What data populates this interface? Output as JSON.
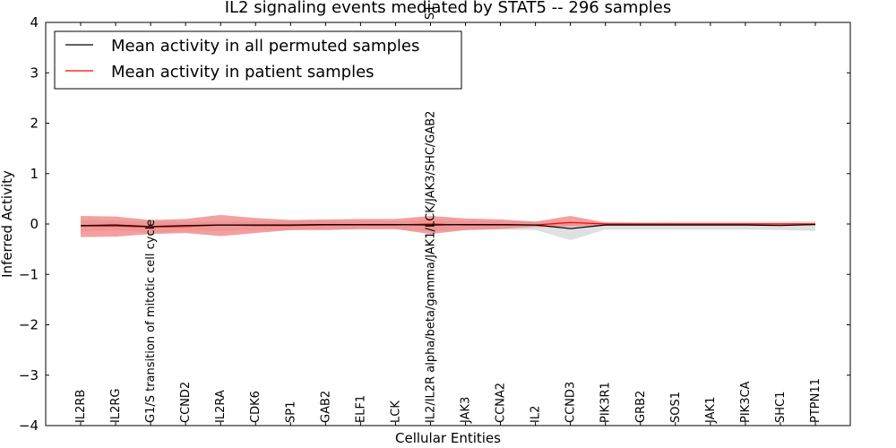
{
  "chart_data": {
    "type": "line",
    "title": "IL2 signaling events mediated by STAT5 -- 296 samples",
    "xlabel": "Cellular Entities",
    "ylabel": "Inferred Activity",
    "ylim": [
      -4,
      4
    ],
    "yticks": [
      4,
      3,
      2,
      1,
      0,
      -1,
      -2,
      -3,
      -4
    ],
    "ytick_labels": [
      "4",
      "3",
      "2",
      "1",
      "0",
      "−1",
      "−2",
      "−3",
      "−4"
    ],
    "categories": [
      "IL2RB",
      "IL2RG",
      "G1/S transition of mitotic cell cycle",
      "CCND2",
      "IL2RA",
      "CDK6",
      "SP1",
      "GAB2",
      "ELF1",
      "LCK",
      "IL2/IL2R alpha/beta/gamma/JAK1/LCK/JAK3/SHC/GAB2",
      "JAK3",
      "CCNA2",
      "IL2",
      "CCND3",
      "PIK3R1",
      "GRB2",
      "SOS1",
      "JAK1",
      "PIK3CA",
      "SHC1",
      "PTPN11"
    ],
    "top_annotation": "S1",
    "legend": {
      "position": "top-left",
      "entries": [
        {
          "label": "Mean activity in all permuted samples",
          "color": "#000000"
        },
        {
          "label": "Mean activity in patient samples",
          "color": "#ff0000"
        }
      ]
    },
    "series": [
      {
        "name": "Mean activity in all permuted samples",
        "color": "#000000",
        "values": [
          -0.03,
          -0.02,
          -0.05,
          -0.03,
          -0.02,
          -0.02,
          -0.02,
          -0.01,
          -0.01,
          -0.01,
          -0.02,
          -0.01,
          -0.01,
          -0.02,
          -0.09,
          -0.02,
          -0.02,
          -0.02,
          -0.02,
          -0.02,
          -0.03,
          -0.01
        ],
        "band_upper": [
          0.08,
          0.07,
          0.05,
          0.05,
          0.05,
          0.06,
          0.07,
          0.07,
          0.06,
          0.05,
          0.09,
          0.06,
          0.06,
          0.04,
          0.03,
          0.04,
          0.04,
          0.05,
          0.05,
          0.05,
          0.05,
          0.06
        ],
        "band_lower": [
          -0.15,
          -0.13,
          -0.17,
          -0.15,
          -0.14,
          -0.13,
          -0.12,
          -0.11,
          -0.11,
          -0.11,
          -0.15,
          -0.12,
          -0.11,
          -0.12,
          -0.32,
          -0.11,
          -0.11,
          -0.11,
          -0.11,
          -0.11,
          -0.12,
          -0.14
        ],
        "band_color": "#d3d3d3"
      },
      {
        "name": "Mean activity in patient samples",
        "color": "#ff0000",
        "values": [
          -0.04,
          -0.04,
          -0.06,
          -0.05,
          -0.02,
          -0.03,
          -0.03,
          -0.02,
          -0.02,
          -0.02,
          0.0,
          -0.02,
          -0.02,
          -0.02,
          0.03,
          0.0,
          0.0,
          0.0,
          0.0,
          0.0,
          0.0,
          0.0
        ],
        "band_upper": [
          0.16,
          0.15,
          0.08,
          0.1,
          0.18,
          0.12,
          0.08,
          0.09,
          0.1,
          0.1,
          0.16,
          0.11,
          0.09,
          0.05,
          0.16,
          0.03,
          0.02,
          0.02,
          0.02,
          0.02,
          0.02,
          0.02
        ],
        "band_lower": [
          -0.26,
          -0.25,
          -0.2,
          -0.18,
          -0.24,
          -0.18,
          -0.12,
          -0.12,
          -0.1,
          -0.1,
          -0.2,
          -0.12,
          -0.1,
          -0.06,
          -0.05,
          -0.03,
          -0.02,
          -0.02,
          -0.02,
          -0.02,
          -0.02,
          -0.02
        ],
        "band_color": "#f08080"
      }
    ]
  }
}
